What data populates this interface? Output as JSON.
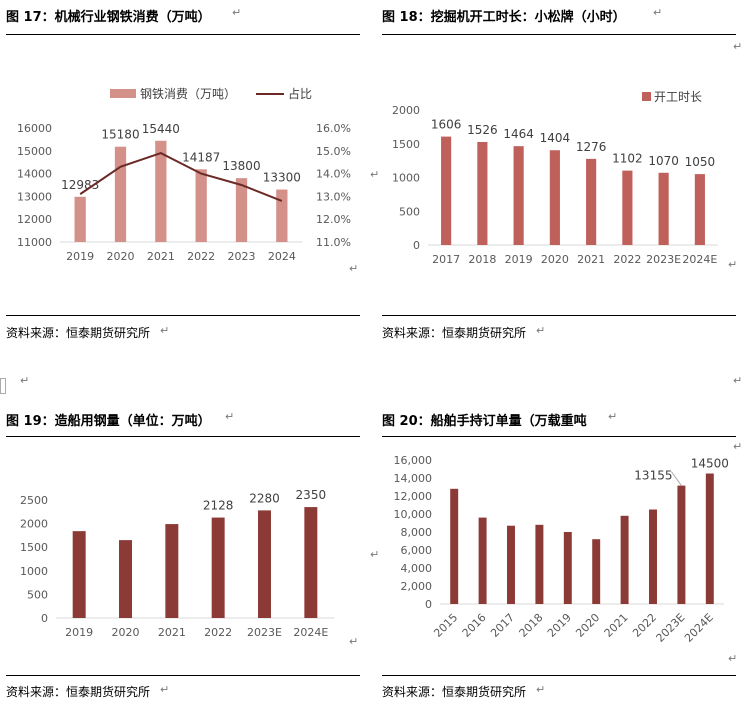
{
  "panels": [
    {
      "title": "图 17：机械行业钢铁消费（万吨）",
      "source": "资料来源：恒泰期货研究所"
    },
    {
      "title": "图 18：挖掘机开工时长：小松牌（小时）",
      "source": "资料来源：恒泰期货研究所"
    },
    {
      "title": "图 19：造船用钢量（单位：万吨）",
      "source": "资料来源：恒泰期货研究所"
    },
    {
      "title": "图 20：船舶手持订单量（万载重吨",
      "source": "资料来源：恒泰期货研究所"
    }
  ],
  "return_mark": "↵",
  "colors": {
    "salmon": "#d4918a",
    "line": "#6b2a26",
    "red": "#c0605b",
    "dark": "#8b3a36",
    "axis_text": "#595959",
    "grid": "#d9d9d9"
  },
  "chart_data": [
    {
      "type": "bar",
      "categories": [
        "2019",
        "2020",
        "2021",
        "2022",
        "2023",
        "2024"
      ],
      "series": [
        {
          "name": "钢铁消费（万吨）",
          "type": "bar",
          "axis": "left",
          "values": [
            12983,
            15180,
            15440,
            14187,
            13800,
            13300
          ]
        },
        {
          "name": "占比",
          "type": "line",
          "axis": "right",
          "values": [
            0.131,
            0.143,
            0.149,
            0.14,
            0.135,
            0.128
          ]
        }
      ],
      "data_labels": [
        "12983",
        "15180",
        "15440",
        "14187",
        "13800",
        "13300"
      ],
      "ylim": [
        11000,
        16000
      ],
      "yticks": [
        "11000",
        "12000",
        "13000",
        "14000",
        "15000",
        "16000"
      ],
      "y2lim": [
        0.11,
        0.16
      ],
      "y2ticks": [
        "11.0%",
        "12.0%",
        "13.0%",
        "14.0%",
        "15.0%",
        "16.0%"
      ],
      "legend": "top",
      "grid": false
    },
    {
      "type": "bar",
      "categories": [
        "2017",
        "2018",
        "2019",
        "2020",
        "2021",
        "2022",
        "2023E",
        "2024E"
      ],
      "series": [
        {
          "name": "开工时长",
          "values": [
            1606,
            1526,
            1464,
            1404,
            1276,
            1102,
            1070,
            1050
          ]
        }
      ],
      "data_labels": [
        "1606",
        "1526",
        "1464",
        "1404",
        "1276",
        "1102",
        "1070",
        "1050"
      ],
      "ylim": [
        0,
        2000
      ],
      "yticks": [
        "0",
        "500",
        "1000",
        "1500",
        "2000"
      ],
      "legend": "top-right",
      "grid": false
    },
    {
      "type": "bar",
      "categories": [
        "2019",
        "2020",
        "2021",
        "2022",
        "2023E",
        "2024E"
      ],
      "series": [
        {
          "values": [
            1840,
            1650,
            1990,
            2128,
            2280,
            2350
          ]
        }
      ],
      "data_labels": [
        "",
        "",
        "",
        "2128",
        "2280",
        "2350"
      ],
      "ylim": [
        0,
        2500
      ],
      "yticks": [
        "0",
        "500",
        "1000",
        "1500",
        "2000",
        "2500"
      ],
      "grid": false
    },
    {
      "type": "bar",
      "categories": [
        "2015",
        "2016",
        "2017",
        "2018",
        "2019",
        "2020",
        "2021",
        "2022",
        "2023E",
        "2024E"
      ],
      "series": [
        {
          "values": [
            12800,
            9600,
            8700,
            8800,
            8000,
            7200,
            9800,
            10500,
            13155,
            14500
          ]
        }
      ],
      "data_labels": [
        "",
        "",
        "",
        "",
        "",
        "",
        "",
        "",
        "13155",
        "14500"
      ],
      "ylim": [
        0,
        16000
      ],
      "yticks": [
        "0",
        "2,000",
        "4,000",
        "6,000",
        "8,000",
        "10,000",
        "12,000",
        "14,000",
        "16,000"
      ],
      "grid": false
    }
  ]
}
